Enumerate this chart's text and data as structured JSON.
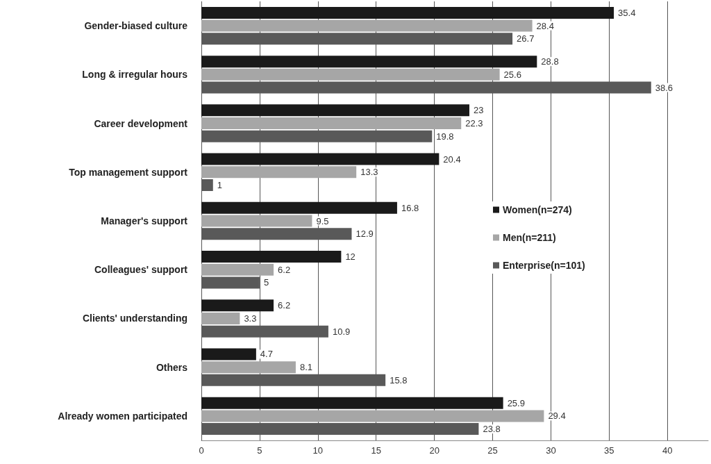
{
  "chart_data": {
    "type": "bar",
    "orientation": "horizontal",
    "categories": [
      "Gender-biased culture",
      "Long & irregular hours",
      "Career development",
      "Top management support",
      "Manager's support",
      "Colleagues' support",
      "Clients' understanding",
      "Others",
      "Already women participated"
    ],
    "series": [
      {
        "name": "Women(n=274)",
        "color": "#1a1a1a",
        "values": [
          35.4,
          28.8,
          23,
          20.4,
          16.8,
          12,
          6.2,
          4.7,
          25.9
        ]
      },
      {
        "name": "Men(n=211)",
        "color": "#a6a6a6",
        "values": [
          28.4,
          25.6,
          22.3,
          13.3,
          9.5,
          6.2,
          3.3,
          8.1,
          29.4
        ]
      },
      {
        "name": "Enterprise(n=101)",
        "color": "#595959",
        "values": [
          26.7,
          38.6,
          19.8,
          1,
          12.9,
          5,
          10.9,
          15.8,
          23.8
        ]
      }
    ],
    "xlim": [
      0,
      43.5
    ],
    "xticks": [
      0,
      5,
      10,
      15,
      20,
      25,
      30,
      35,
      40
    ],
    "grid": "x",
    "legend": "right",
    "data_labels": true
  }
}
